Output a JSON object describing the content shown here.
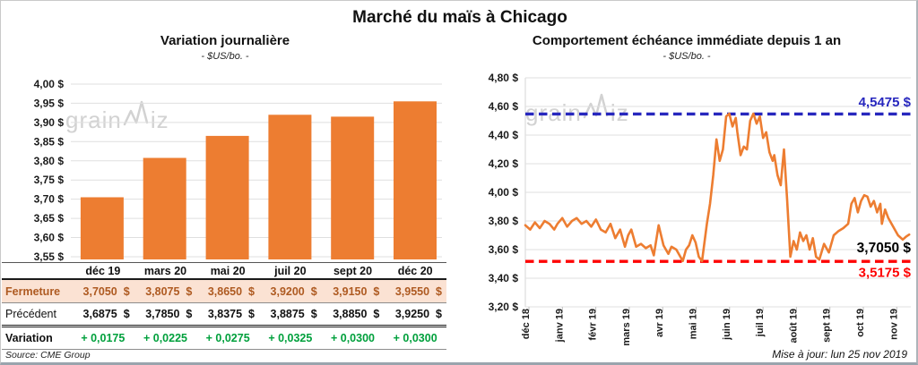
{
  "page": {
    "title": "Marché du maïs à Chicago",
    "watermark": "grainwiz",
    "source": "Source: CME Group",
    "updated": "Mise à jour: lun 25 nov 2019",
    "colors": {
      "accent_orange": "#ED7D31",
      "variation_green": "#00A03C",
      "max_blue": "#2727BE",
      "min_red": "#FE0000",
      "close_row_bg": "#FBE2D3",
      "close_row_text": "#AE5A21",
      "gridline": "#DFDFDF"
    }
  },
  "chart_data": [
    {
      "type": "bar",
      "title": "Variation journalière",
      "subtitle": "- $US/bo. -",
      "categories": [
        "déc 19",
        "mars 20",
        "mai 20",
        "juil 20",
        "sept 20",
        "déc 20"
      ],
      "values": [
        3.705,
        3.8075,
        3.865,
        3.92,
        3.915,
        3.955
      ],
      "bar_color": "#ED7D31",
      "yticks": [
        4.0,
        3.95,
        3.9,
        3.85,
        3.8,
        3.75,
        3.7,
        3.65,
        3.6,
        3.55
      ],
      "ytick_labels": [
        "4,00 $",
        "3,95 $",
        "3,90 $",
        "3,85 $",
        "3,80 $",
        "3,75 $",
        "3,70 $",
        "3,65 $",
        "3,60 $",
        "3,55 $"
      ],
      "ylim": [
        3.53,
        4.015
      ],
      "grid": true,
      "legend": "none"
    },
    {
      "type": "line",
      "title": "Comportement échéance immédiate depuis 1 an",
      "subtitle": "- $US/bo. -",
      "x_tick_labels": [
        "déc 18",
        "janv 19",
        "févr 19",
        "mars 19",
        "avr 19",
        "mai 19",
        "juin 19",
        "juil 19",
        "août 19",
        "sept 19",
        "oct 19",
        "nov 19"
      ],
      "yticks": [
        4.8,
        4.6,
        4.4,
        4.2,
        4.0,
        3.8,
        3.6,
        3.4,
        3.2
      ],
      "ytick_labels": [
        "4,80 $",
        "4,60 $",
        "4,40 $",
        "4,20 $",
        "4,00 $",
        "3,80 $",
        "3,60 $",
        "3,40 $",
        "3,20 $"
      ],
      "ylim": [
        3.2,
        4.8
      ],
      "line_color": "#ED7D31",
      "grid": true,
      "legend": "none",
      "ref_lines": [
        {
          "name": "max",
          "value": 4.5475,
          "label": "4,5475 $",
          "color": "#2727BE",
          "style": "dashed"
        },
        {
          "name": "min",
          "value": 3.5175,
          "label": "3,5175 $",
          "color": "#FE0000",
          "style": "dashed"
        }
      ],
      "last_point": {
        "value": 3.705,
        "label": "3,7050 $",
        "color": "#000000"
      },
      "points": [
        [
          0.0,
          3.77
        ],
        [
          0.15,
          3.74
        ],
        [
          0.3,
          3.79
        ],
        [
          0.45,
          3.75
        ],
        [
          0.6,
          3.8
        ],
        [
          0.75,
          3.78
        ],
        [
          0.9,
          3.74
        ],
        [
          1.0,
          3.78
        ],
        [
          1.15,
          3.82
        ],
        [
          1.3,
          3.76
        ],
        [
          1.45,
          3.8
        ],
        [
          1.6,
          3.82
        ],
        [
          1.75,
          3.78
        ],
        [
          1.9,
          3.8
        ],
        [
          2.05,
          3.76
        ],
        [
          2.2,
          3.81
        ],
        [
          2.35,
          3.74
        ],
        [
          2.5,
          3.72
        ],
        [
          2.65,
          3.78
        ],
        [
          2.8,
          3.68
        ],
        [
          2.95,
          3.74
        ],
        [
          3.1,
          3.62
        ],
        [
          3.2,
          3.7
        ],
        [
          3.3,
          3.74
        ],
        [
          3.45,
          3.62
        ],
        [
          3.6,
          3.64
        ],
        [
          3.75,
          3.61
        ],
        [
          3.9,
          3.63
        ],
        [
          4.0,
          3.56
        ],
        [
          4.15,
          3.77
        ],
        [
          4.3,
          3.63
        ],
        [
          4.45,
          3.57
        ],
        [
          4.55,
          3.62
        ],
        [
          4.7,
          3.6
        ],
        [
          4.8,
          3.56
        ],
        [
          4.9,
          3.52
        ],
        [
          5.0,
          3.6
        ],
        [
          5.1,
          3.63
        ],
        [
          5.2,
          3.7
        ],
        [
          5.3,
          3.65
        ],
        [
          5.4,
          3.55
        ],
        [
          5.5,
          3.52
        ],
        [
          5.65,
          3.78
        ],
        [
          5.75,
          3.92
        ],
        [
          5.85,
          4.12
        ],
        [
          5.95,
          4.37
        ],
        [
          6.05,
          4.22
        ],
        [
          6.15,
          4.3
        ],
        [
          6.25,
          4.53
        ],
        [
          6.35,
          4.55
        ],
        [
          6.45,
          4.46
        ],
        [
          6.55,
          4.52
        ],
        [
          6.6,
          4.42
        ],
        [
          6.7,
          4.26
        ],
        [
          6.8,
          4.32
        ],
        [
          6.9,
          4.3
        ],
        [
          7.0,
          4.5
        ],
        [
          7.1,
          4.55
        ],
        [
          7.2,
          4.48
        ],
        [
          7.3,
          4.53
        ],
        [
          7.4,
          4.38
        ],
        [
          7.5,
          4.42
        ],
        [
          7.6,
          4.28
        ],
        [
          7.7,
          4.22
        ],
        [
          7.75,
          4.26
        ],
        [
          7.85,
          4.12
        ],
        [
          7.95,
          4.05
        ],
        [
          8.0,
          4.18
        ],
        [
          8.05,
          4.3
        ],
        [
          8.15,
          3.95
        ],
        [
          8.25,
          3.55
        ],
        [
          8.35,
          3.66
        ],
        [
          8.45,
          3.6
        ],
        [
          8.55,
          3.72
        ],
        [
          8.65,
          3.66
        ],
        [
          8.75,
          3.7
        ],
        [
          8.85,
          3.6
        ],
        [
          8.95,
          3.68
        ],
        [
          9.05,
          3.55
        ],
        [
          9.15,
          3.53
        ],
        [
          9.3,
          3.64
        ],
        [
          9.45,
          3.58
        ],
        [
          9.6,
          3.7
        ],
        [
          9.75,
          3.73
        ],
        [
          9.9,
          3.75
        ],
        [
          10.05,
          3.78
        ],
        [
          10.15,
          3.92
        ],
        [
          10.25,
          3.96
        ],
        [
          10.35,
          3.86
        ],
        [
          10.45,
          3.94
        ],
        [
          10.55,
          3.98
        ],
        [
          10.65,
          3.97
        ],
        [
          10.75,
          3.9
        ],
        [
          10.85,
          3.94
        ],
        [
          10.95,
          3.86
        ],
        [
          11.05,
          3.92
        ],
        [
          11.1,
          3.78
        ],
        [
          11.2,
          3.88
        ],
        [
          11.3,
          3.82
        ],
        [
          11.45,
          3.76
        ],
        [
          11.6,
          3.7
        ],
        [
          11.75,
          3.67
        ],
        [
          11.85,
          3.69
        ],
        [
          11.95,
          3.705
        ]
      ]
    }
  ],
  "table": {
    "columns": [
      "déc 19",
      "mars 20",
      "mai 20",
      "juil 20",
      "sept 20",
      "déc 20"
    ],
    "rows": [
      {
        "label": "Fermeture",
        "values": [
          "3,7050  $",
          "3,8075  $",
          "3,8650  $",
          "3,9200  $",
          "3,9150  $",
          "3,9550  $"
        ]
      },
      {
        "label": "Précédent",
        "values": [
          "3,6875  $",
          "3,7850  $",
          "3,8375  $",
          "3,8875  $",
          "3,8850  $",
          "3,9250  $"
        ]
      },
      {
        "label": "Variation",
        "values": [
          "+ 0,0175",
          "+ 0,0225",
          "+ 0,0275",
          "+ 0,0325",
          "+ 0,0300",
          "+ 0,0300"
        ]
      }
    ]
  }
}
